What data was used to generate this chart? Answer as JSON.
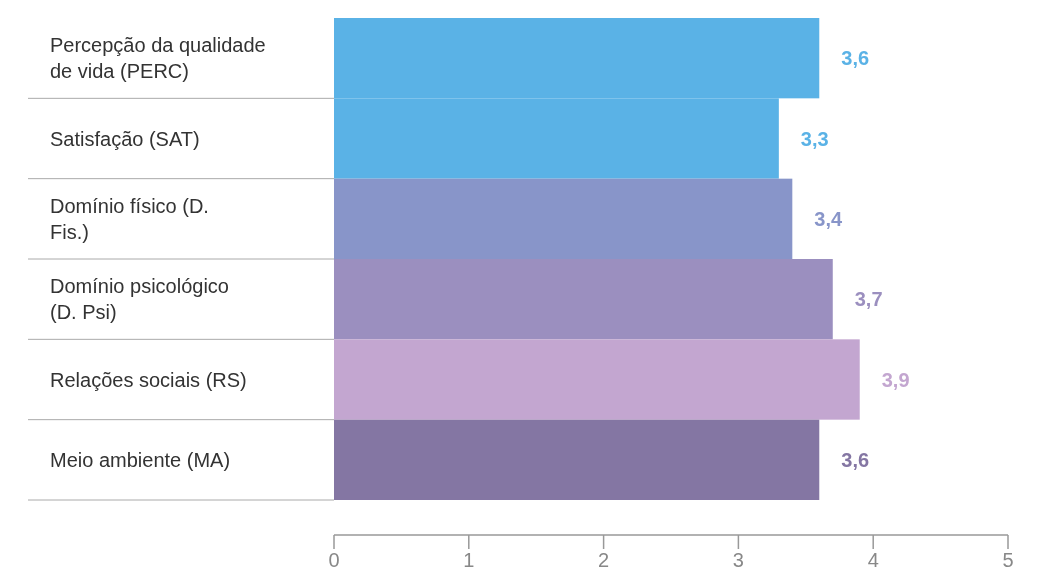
{
  "chart_data": {
    "type": "bar",
    "orientation": "horizontal",
    "categories": [
      "Percepção da qualidade de vida (PERC)",
      "Satisfação (SAT)",
      "Domínio físico (D. Fis.)",
      "Domínio psicológico (D. Psi)",
      "Relações sociais (RS)",
      "Meio ambiente (MA)"
    ],
    "values": [
      3.6,
      3.3,
      3.4,
      3.7,
      3.9,
      3.6
    ],
    "colors": [
      "#5ab2e6",
      "#5ab2e6",
      "#8895c9",
      "#9b8fbf",
      "#c3a6d0",
      "#8476a3"
    ],
    "value_labels": [
      "3,6",
      "3,3",
      "3,4",
      "3,7",
      "3,9",
      "3,6"
    ],
    "xlim": [
      0,
      5
    ],
    "xticks": [
      0,
      1,
      2,
      3,
      4,
      5
    ],
    "grid": false
  }
}
